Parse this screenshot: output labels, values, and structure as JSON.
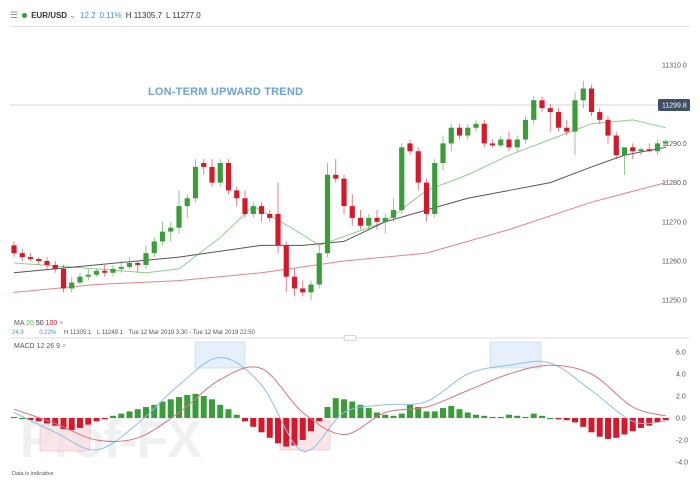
{
  "header": {
    "menu_icon": "hamburger-icon",
    "status_color": "#2e9e3e",
    "symbol": "EUR/USD",
    "change": "12.2",
    "change_pct": "0.11%",
    "high": "H 11305.7",
    "low": "L 11277.0"
  },
  "annotation": "LON-TERM UPWARD TREND",
  "current_price_label": "11299.8",
  "ma_legend": {
    "label": "MA",
    "p1": "20",
    "p2": "50",
    "p3": "100",
    "close": "×"
  },
  "stats": {
    "change": "24.9",
    "change_pct": "0.22%",
    "high": "H 11305.1",
    "low": "L 11249.1",
    "range": "Tue 12 Mar 2019 3:30 - Tue 12 Mar 2019 22:50"
  },
  "macd_legend": {
    "label": "MACD",
    "fast": "12",
    "slow": "26",
    "signal": "9",
    "close": "×"
  },
  "footer": "Data is indicative",
  "watermark": "Prof-FX",
  "colors": {
    "up": "#3a9d3a",
    "down": "#d7182a",
    "ma20": "#8fcf8f",
    "ma50": "#555555",
    "ma100": "#e8808a",
    "macd": "#8fbfe8",
    "signal": "#e07080"
  },
  "chart_data": [
    {
      "type": "candlestick",
      "title": "EUR/USD",
      "ylim": [
        11245,
        11315
      ],
      "yticks": [
        "11310.0",
        "11280.0",
        "11270.0",
        "11260.0",
        "11250.0"
      ],
      "ytick_values": [
        11310,
        11280,
        11270,
        11260,
        11250
      ],
      "extra_tick": "11290.0",
      "hline": 11299.8,
      "candles": [
        [
          11264,
          11265,
          11261,
          11262
        ],
        [
          11262,
          11263,
          11260,
          11261
        ],
        [
          11261,
          11262,
          11260,
          11260.5
        ],
        [
          11260.5,
          11261,
          11259,
          11260
        ],
        [
          11260,
          11261,
          11258,
          11259
        ],
        [
          11259,
          11260,
          11257,
          11258
        ],
        [
          11258,
          11259,
          11252,
          11253
        ],
        [
          11253,
          11256,
          11252,
          11254.5
        ],
        [
          11254.5,
          11257,
          11254,
          11256
        ],
        [
          11256,
          11258,
          11255,
          11256.5
        ],
        [
          11256.5,
          11258,
          11256,
          11257.5
        ],
        [
          11257.5,
          11259,
          11256,
          11257
        ],
        [
          11257,
          11259,
          11256,
          11258
        ],
        [
          11258,
          11260,
          11257,
          11258.5
        ],
        [
          11258.5,
          11261,
          11258,
          11259.5
        ],
        [
          11259.5,
          11260,
          11257,
          11259
        ],
        [
          11259,
          11264,
          11258,
          11262
        ],
        [
          11262,
          11266,
          11261,
          11265
        ],
        [
          11265,
          11270,
          11264,
          11267.5
        ],
        [
          11267.5,
          11270,
          11265,
          11268.5
        ],
        [
          11268.5,
          11278,
          11267,
          11274
        ],
        [
          11274,
          11277,
          11271,
          11276
        ],
        [
          11276,
          11286,
          11275,
          11284
        ],
        [
          11285,
          11286,
          11282,
          11284
        ],
        [
          11284,
          11286,
          11279,
          11280
        ],
        [
          11280,
          11286,
          11279,
          11285
        ],
        [
          11285,
          11286,
          11277,
          11278
        ],
        [
          11278,
          11279,
          11274,
          11276
        ],
        [
          11276,
          11278,
          11271,
          11272
        ],
        [
          11272,
          11275,
          11271,
          11274
        ],
        [
          11274,
          11275,
          11270,
          11272
        ],
        [
          11272,
          11273,
          11270,
          11271
        ],
        [
          11272,
          11280,
          11262,
          11264
        ],
        [
          11264,
          11265,
          11252,
          11256
        ],
        [
          11256,
          11258,
          11251,
          11253
        ],
        [
          11253,
          11255,
          11251,
          11252
        ],
        [
          11252,
          11255,
          11250,
          11254
        ],
        [
          11254,
          11264,
          11253,
          11262
        ],
        [
          11262,
          11285,
          11261,
          11282
        ],
        [
          11282,
          11286,
          11280,
          11281
        ],
        [
          11281,
          11282,
          11272,
          11274
        ],
        [
          11274,
          11277,
          11269,
          11271
        ],
        [
          11271,
          11273,
          11268,
          11269
        ],
        [
          11269,
          11272,
          11268,
          11271
        ],
        [
          11271,
          11273,
          11268,
          11270
        ],
        [
          11270,
          11272,
          11267,
          11271
        ],
        [
          11271,
          11276,
          11270,
          11273
        ],
        [
          11273,
          11290,
          11272,
          11289
        ],
        [
          11290,
          11291,
          11287,
          11288
        ],
        [
          11288,
          11289,
          11278,
          11280
        ],
        [
          11280,
          11281,
          11270,
          11272
        ],
        [
          11272,
          11286,
          11271,
          11285
        ],
        [
          11285,
          11292,
          11283,
          11290
        ],
        [
          11290,
          11295,
          11288,
          11294
        ],
        [
          11294,
          11295,
          11291,
          11292
        ],
        [
          11292,
          11295,
          11291,
          11294
        ],
        [
          11294,
          11296,
          11293,
          11295
        ],
        [
          11295,
          11296,
          11289,
          11290
        ],
        [
          11290,
          11291,
          11289,
          11289.5
        ],
        [
          11289.5,
          11292,
          11289,
          11291
        ],
        [
          11291,
          11293,
          11288,
          11289
        ],
        [
          11289,
          11292,
          11288,
          11291
        ],
        [
          11291,
          11297,
          11290,
          11296
        ],
        [
          11296,
          11302,
          11295,
          11301
        ],
        [
          11301,
          11302,
          11298,
          11299
        ],
        [
          11299,
          11300,
          11293,
          11298
        ],
        [
          11298,
          11299,
          11293,
          11294
        ],
        [
          11294,
          11296,
          11292,
          11293
        ],
        [
          11293,
          11303,
          11287,
          11301
        ],
        [
          11301,
          11306,
          11299,
          11304
        ],
        [
          11304,
          11305,
          11297,
          11298
        ],
        [
          11298,
          11299,
          11295,
          11296
        ],
        [
          11296,
          11297,
          11290,
          11292
        ],
        [
          11292,
          11293,
          11286,
          11287
        ],
        [
          11287,
          11289,
          11282,
          11289
        ],
        [
          11289,
          11290,
          11286,
          11288
        ],
        [
          11288,
          11289,
          11287,
          11288.5
        ],
        [
          11288.5,
          11290,
          11288,
          11288
        ],
        [
          11288,
          11291,
          11287,
          11290
        ],
        [
          11290,
          11291,
          11289,
          11290.5
        ]
      ],
      "moving_averages": [
        {
          "name": "MA 20",
          "index": [
            0,
            10,
            16,
            20,
            25,
            29,
            34,
            37,
            45,
            50,
            55,
            60,
            65,
            70,
            75,
            79
          ],
          "values": [
            11259.5,
            11258,
            11257,
            11258,
            11266,
            11274,
            11268,
            11264,
            11270,
            11278,
            11282,
            11287,
            11291,
            11295,
            11296,
            11294
          ]
        },
        {
          "name": "MA 50",
          "index": [
            0,
            10,
            20,
            30,
            35,
            40,
            45,
            50,
            55,
            60,
            65,
            70,
            74,
            79
          ],
          "values": [
            11257,
            11259,
            11261,
            11264,
            11264,
            11265,
            11270,
            11273,
            11276,
            11278,
            11280,
            11284,
            11287,
            11289
          ]
        },
        {
          "name": "MA 100",
          "index": [
            0,
            10,
            20,
            30,
            40,
            50,
            60,
            70,
            79
          ],
          "values": [
            11252,
            11254,
            11255,
            11257,
            11260,
            11262,
            11268,
            11275,
            11280
          ]
        }
      ]
    },
    {
      "type": "bar+line",
      "title": "MACD 12 26 9",
      "ylim": [
        -5,
        7
      ],
      "yticks": [
        "6.0",
        "4.0",
        "2.0",
        "0.0",
        "-2.0",
        "-4.0"
      ],
      "ytick_values": [
        6,
        4,
        2,
        0,
        -2,
        -4
      ],
      "histogram": [
        0.1,
        0,
        -0.2,
        -0.3,
        -0.5,
        -0.7,
        -1.0,
        -1.1,
        -0.9,
        -0.6,
        -0.3,
        -0.1,
        0.2,
        0.4,
        0.6,
        0.8,
        1.0,
        1.2,
        1.5,
        1.7,
        1.9,
        2.1,
        2.2,
        2.0,
        1.7,
        1.2,
        0.8,
        0.3,
        -0.3,
        -0.8,
        -1.3,
        -1.8,
        -2.3,
        -2.6,
        -2.5,
        -2.0,
        -1.2,
        -0.3,
        1.0,
        1.8,
        1.7,
        1.5,
        1.2,
        0.9,
        0.5,
        0.3,
        0.2,
        0.4,
        1.2,
        1.0,
        0.6,
        0.6,
        0.9,
        1.1,
        0.8,
        0.5,
        0.3,
        0.2,
        0.1,
        0.1,
        0.3,
        0.2,
        0.1,
        0.4,
        0.2,
        0,
        -0.1,
        -0.2,
        -0.4,
        -0.8,
        -1.3,
        -1.7,
        -1.9,
        -1.8,
        -1.5,
        -1.2,
        -0.9,
        -0.7,
        -0.4,
        -0.2
      ],
      "lines": [
        {
          "name": "MACD",
          "index": [
            0,
            5,
            10,
            15,
            20,
            25,
            30,
            35,
            40,
            45,
            50,
            55,
            60,
            65,
            70,
            75,
            79
          ],
          "values": [
            0.5,
            -1.3,
            -2.9,
            -0.5,
            3.0,
            5.5,
            3.0,
            -3.0,
            0.5,
            1.2,
            1.5,
            4.0,
            4.8,
            5.0,
            2.5,
            -0.3,
            -0.3
          ]
        },
        {
          "name": "Signal",
          "index": [
            0,
            5,
            10,
            15,
            20,
            25,
            30,
            35,
            40,
            45,
            50,
            55,
            60,
            65,
            70,
            75,
            79
          ],
          "values": [
            0.8,
            -0.5,
            -2.0,
            -1.8,
            0.5,
            3.5,
            4.5,
            0.5,
            -1.5,
            0.5,
            1.0,
            2.5,
            4.0,
            4.8,
            4.0,
            1.0,
            0.2
          ]
        }
      ]
    }
  ]
}
